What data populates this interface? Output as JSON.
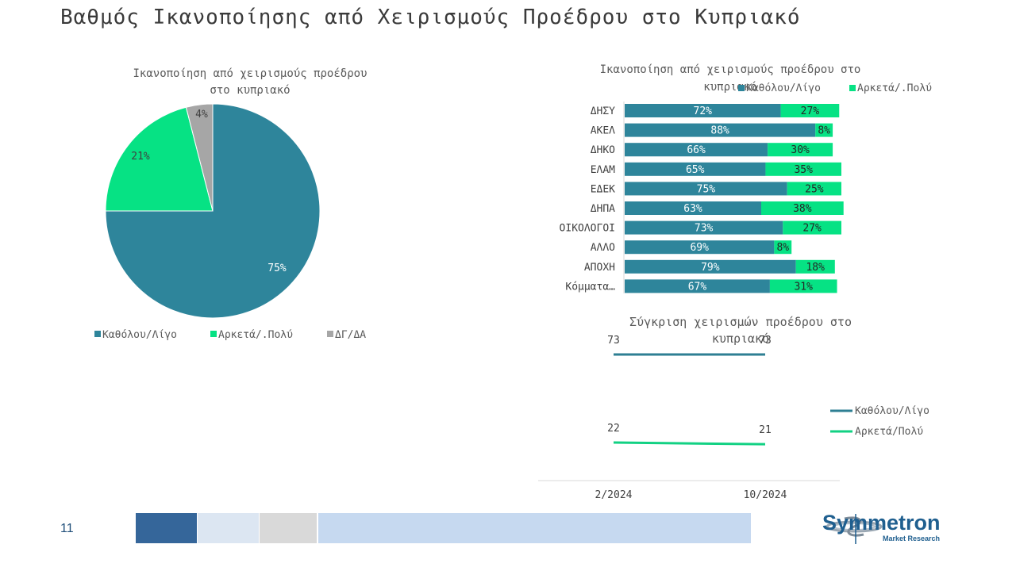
{
  "slide": {
    "title": "Βαθμός Ικανοποίησης από Χειρισμούς Προέδρου στο Κυπριακό",
    "page_number": "11"
  },
  "colors": {
    "teal": "#2E859B",
    "green": "#06E284",
    "gray": "#A6A6A6",
    "footer_dark": "#35669A",
    "footer_light1": "#DCE6F2",
    "footer_light2": "#D9D9D9",
    "footer_light3": "#C6D9F0",
    "brand": "#1F5F8F"
  },
  "logo": {
    "name": "Symmetron",
    "tagline": "Market Research"
  },
  "chart_data": [
    {
      "type": "pie",
      "title": "Ικανοποίηση από χειρισμούς προέδρου στο κυπριακό",
      "title_lines": [
        "Ικανοποίηση από χειρισμούς προέδρου",
        "στο κυπριακό"
      ],
      "slices": [
        {
          "label": "Καθόλου/Λίγο",
          "value": 75,
          "display": "75%",
          "color": "#2E859B"
        },
        {
          "label": "Αρκετά/.Πολύ",
          "value": 21,
          "display": "21%",
          "color": "#06E284"
        },
        {
          "label": "ΔΓ/ΔΑ",
          "value": 4,
          "display": "4%",
          "color": "#A6A6A6"
        }
      ],
      "legend_position": "bottom"
    },
    {
      "type": "bar",
      "orientation": "horizontal",
      "stacked": true,
      "title": "Ικανοποίηση από χειρισμούς προέδρου στο κυπριακό",
      "title_lines": [
        "Ικανοποίηση από χειρισμούς προέδρου στο",
        "κυπριακό"
      ],
      "categories": [
        "ΔΗΣΥ",
        "ΑΚΕΛ",
        "ΔΗΚΟ",
        "ΕΛΑΜ",
        "ΕΔΕΚ",
        "ΔΗΠΑ",
        "ΟΙΚΟΛΟΓΟΙ",
        "ΑΛΛΟ",
        "ΑΠΟΧΗ",
        "Κόμματα…"
      ],
      "series": [
        {
          "name": "Καθόλου/Λίγο",
          "color": "#2E859B",
          "values": [
            72,
            88,
            66,
            65,
            75,
            63,
            73,
            69,
            79,
            67
          ]
        },
        {
          "name": "Αρκετά/.Πολύ",
          "color": "#06E284",
          "values": [
            27,
            8,
            30,
            35,
            25,
            38,
            27,
            8,
            18,
            31
          ]
        }
      ],
      "xlim": [
        0,
        100
      ],
      "legend_position": "top"
    },
    {
      "type": "line",
      "title": "Σύγκριση χειρισμών προέδρου στο κυπριακό",
      "title_lines": [
        "Σύγκριση χειρισμών προέδρου στο",
        "κυπριακό"
      ],
      "x": [
        "2/2024",
        "10/2024"
      ],
      "series": [
        {
          "name": "Καθόλου/Λίγο",
          "color": "#2E7F93",
          "values": [
            73,
            73
          ]
        },
        {
          "name": "Αρκετά/Πολύ",
          "color": "#12D183",
          "values": [
            22,
            21
          ]
        }
      ],
      "legend_position": "right"
    }
  ]
}
